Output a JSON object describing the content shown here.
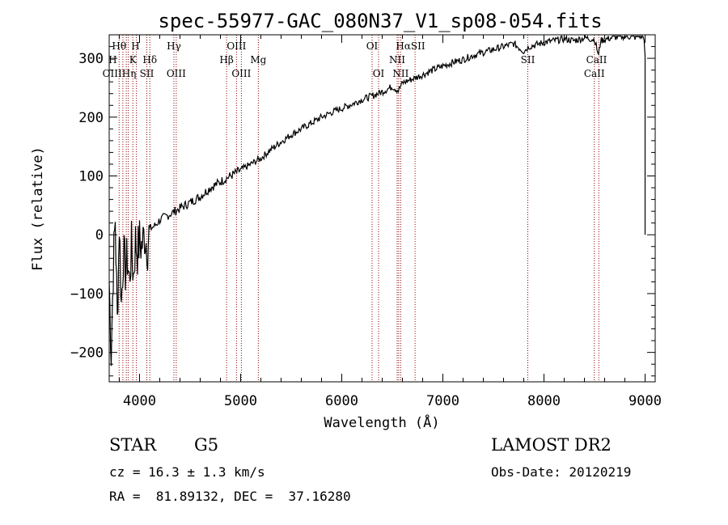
{
  "title": "spec-55977-GAC_080N37_V1_sp08-054.fits",
  "chart_data": {
    "type": "line",
    "title": "spec-55977-GAC_080N37_V1_sp08-054.fits",
    "xlabel": "Wavelength (Å)",
    "ylabel": "Flux (relative)",
    "xlim": [
      3700,
      9100
    ],
    "ylim": [
      -250,
      340
    ],
    "xticks": [
      4000,
      5000,
      6000,
      7000,
      8000,
      9000
    ],
    "yticks": [
      -200,
      -100,
      0,
      100,
      200,
      300
    ],
    "grid": false,
    "line_color": "#000000",
    "marker_line_color": "#8b0000",
    "series": [
      {
        "values": [
          [
            3700,
            -80
          ],
          [
            3720,
            -200
          ],
          [
            3740,
            -60
          ],
          [
            3760,
            30
          ],
          [
            3780,
            -150
          ],
          [
            3800,
            20
          ],
          [
            3820,
            -120
          ],
          [
            3840,
            -30
          ],
          [
            3860,
            -60
          ],
          [
            3880,
            -40
          ],
          [
            3900,
            -80
          ],
          [
            3920,
            -20
          ],
          [
            3940,
            -70
          ],
          [
            3960,
            -10
          ],
          [
            3980,
            -30
          ],
          [
            4000,
            -10
          ],
          [
            4020,
            -20
          ],
          [
            4050,
            0
          ],
          [
            4080,
            -20
          ],
          [
            4100,
            10
          ],
          [
            4150,
            15
          ],
          [
            4200,
            25
          ],
          [
            4250,
            30
          ],
          [
            4300,
            35
          ],
          [
            4350,
            40
          ],
          [
            4400,
            45
          ],
          [
            4500,
            55
          ],
          [
            4600,
            65
          ],
          [
            4700,
            80
          ],
          [
            4800,
            90
          ],
          [
            4900,
            100
          ],
          [
            5000,
            110
          ],
          [
            5100,
            120
          ],
          [
            5200,
            130
          ],
          [
            5300,
            145
          ],
          [
            5400,
            158
          ],
          [
            5500,
            170
          ],
          [
            5600,
            180
          ],
          [
            5700,
            190
          ],
          [
            5800,
            200
          ],
          [
            5900,
            208
          ],
          [
            6000,
            215
          ],
          [
            6100,
            222
          ],
          [
            6200,
            230
          ],
          [
            6300,
            236
          ],
          [
            6400,
            243
          ],
          [
            6500,
            252
          ],
          [
            6560,
            245
          ],
          [
            6600,
            258
          ],
          [
            6700,
            265
          ],
          [
            6800,
            272
          ],
          [
            6900,
            280
          ],
          [
            7000,
            287
          ],
          [
            7100,
            293
          ],
          [
            7200,
            298
          ],
          [
            7300,
            305
          ],
          [
            7400,
            310
          ],
          [
            7500,
            315
          ],
          [
            7600,
            320
          ],
          [
            7700,
            325
          ],
          [
            7800,
            312
          ],
          [
            7850,
            320
          ],
          [
            7900,
            322
          ],
          [
            8000,
            327
          ],
          [
            8100,
            330
          ],
          [
            8200,
            333
          ],
          [
            8300,
            330
          ],
          [
            8400,
            335
          ],
          [
            8500,
            332
          ],
          [
            8540,
            305
          ],
          [
            8560,
            330
          ],
          [
            8620,
            333
          ],
          [
            8700,
            336
          ],
          [
            8800,
            338
          ],
          [
            8900,
            336
          ],
          [
            8950,
            338
          ],
          [
            8990,
            335
          ],
          [
            9000,
            300
          ],
          [
            9000,
            90
          ],
          [
            9000,
            0
          ]
        ]
      }
    ],
    "lines": [
      {
        "wl": 3798,
        "names": [
          "Hθ"
        ]
      },
      {
        "wl": 3835,
        "names": [
          "H"
        ]
      },
      {
        "wl": 3869,
        "names": [
          "OIII"
        ]
      },
      {
        "wl": 3889,
        "names": [
          "Hη"
        ]
      },
      {
        "wl": 3934,
        "names": [
          "K"
        ]
      },
      {
        "wl": 3969,
        "names": [
          "H"
        ]
      },
      {
        "wl": 4072,
        "names": [
          "SII"
        ]
      },
      {
        "wl": 4102,
        "names": [
          "Hδ"
        ]
      },
      {
        "wl": 4340,
        "names": [
          "Hγ"
        ]
      },
      {
        "wl": 4363,
        "names": [
          "OIII"
        ]
      },
      {
        "wl": 4861,
        "names": [
          "Hβ"
        ]
      },
      {
        "wl": 4959,
        "names": [
          "OIII"
        ]
      },
      {
        "wl": 5007,
        "names": [
          "OIII"
        ]
      },
      {
        "wl": 5175,
        "names": [
          "Mg"
        ]
      },
      {
        "wl": 6300,
        "names": [
          "OI"
        ]
      },
      {
        "wl": 6364,
        "names": [
          "OI"
        ]
      },
      {
        "wl": 6548,
        "names": [
          "NII"
        ]
      },
      {
        "wl": 6563,
        "names": [
          "Hα"
        ]
      },
      {
        "wl": 6583,
        "names": [
          "NII"
        ]
      },
      {
        "wl": 6725,
        "names": [
          "SII"
        ]
      },
      {
        "wl": 7840,
        "names": [
          "SII"
        ]
      },
      {
        "wl": 8498,
        "names": [
          "CaII"
        ]
      },
      {
        "wl": 8542,
        "names": [
          "CaII"
        ]
      }
    ],
    "line_labels": [
      {
        "text": "Hθ",
        "wl": 3798,
        "row": 0
      },
      {
        "text": "H",
        "wl": 3960,
        "row": 0
      },
      {
        "text": "Hγ",
        "wl": 4340,
        "row": 0
      },
      {
        "text": "OIII",
        "wl": 4959,
        "row": 0
      },
      {
        "text": "OI",
        "wl": 6300,
        "row": 0
      },
      {
        "text": "HαSII",
        "wl": 6680,
        "row": 0
      },
      {
        "text": "H",
        "wl": 3735,
        "row": 1
      },
      {
        "text": "K",
        "wl": 3934,
        "row": 1
      },
      {
        "text": "Hδ",
        "wl": 4102,
        "row": 1
      },
      {
        "text": "Hβ",
        "wl": 4861,
        "row": 1
      },
      {
        "text": "Mg",
        "wl": 5175,
        "row": 1
      },
      {
        "text": "NII",
        "wl": 6548,
        "row": 1
      },
      {
        "text": "SII",
        "wl": 7840,
        "row": 1
      },
      {
        "text": "CaII",
        "wl": 8520,
        "row": 1
      },
      {
        "text": "OIIIHη",
        "wl": 3800,
        "row": 2
      },
      {
        "text": "SII",
        "wl": 4072,
        "row": 2
      },
      {
        "text": "OIII",
        "wl": 4363,
        "row": 2
      },
      {
        "text": "OIII",
        "wl": 5007,
        "row": 2
      },
      {
        "text": "OI",
        "wl": 6364,
        "row": 2
      },
      {
        "text": "NII",
        "wl": 6583,
        "row": 2
      },
      {
        "text": "CaII",
        "wl": 8498,
        "row": 2
      }
    ]
  },
  "info": {
    "class": "STAR",
    "subclass": "G5",
    "survey": "LAMOST DR2",
    "cz": "cz = 16.3 ± 1.3 km/s",
    "obs_date": "Obs-Date: 20120219",
    "coords": "RA =  81.89132, DEC =  37.16280"
  }
}
